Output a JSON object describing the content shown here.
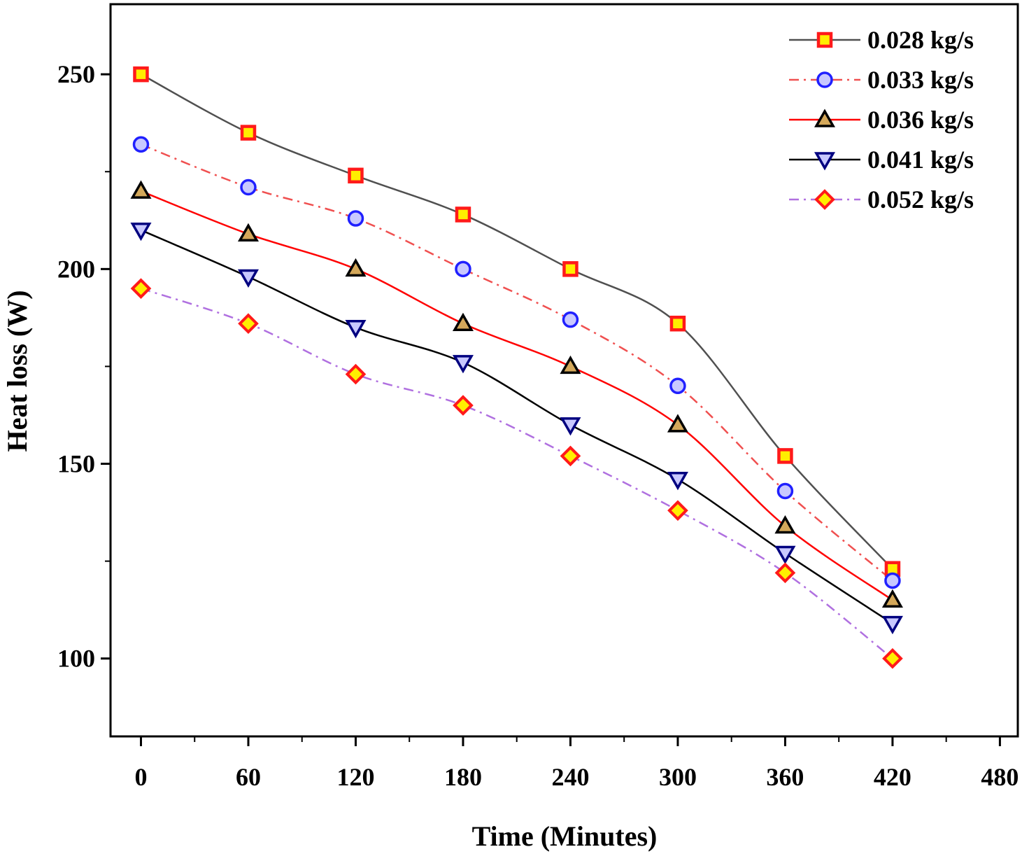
{
  "chart_data": {
    "type": "line",
    "xlabel": "Time (Minutes)",
    "ylabel": "Heat loss (W)",
    "xlim": [
      -17,
      490
    ],
    "ylim": [
      80,
      268
    ],
    "xticks": [
      0,
      60,
      120,
      180,
      240,
      300,
      360,
      420,
      480
    ],
    "xtick_labels": [
      "0",
      "60",
      "120",
      "180",
      "240",
      "300",
      "360",
      "420",
      "480"
    ],
    "yticks": [
      100,
      150,
      200,
      250
    ],
    "ytick_labels": [
      "100",
      "150",
      "200",
      "250"
    ],
    "x": [
      0,
      60,
      120,
      180,
      240,
      300,
      360,
      420
    ],
    "legend_position": "top-right",
    "series": [
      {
        "name": "0.028 kg/s",
        "values": [
          250,
          235,
          224,
          214,
          200,
          186,
          152,
          123
        ],
        "line_color": "#505050",
        "line_style": "solid",
        "marker": "square",
        "marker_fill": "#ffee00",
        "marker_stroke": "#ff1a1a"
      },
      {
        "name": "0.033 kg/s",
        "values": [
          232,
          221,
          213,
          200,
          187,
          170,
          143,
          120
        ],
        "line_color": "#f05050",
        "line_style": "dashdot",
        "marker": "circle",
        "marker_fill": "#c8c8ff",
        "marker_stroke": "#2020ff"
      },
      {
        "name": "0.036 kg/s",
        "values": [
          220,
          209,
          200,
          186,
          175,
          160,
          134,
          115
        ],
        "line_color": "#ff0000",
        "line_style": "solid",
        "marker": "triangle-up",
        "marker_fill": "#d4a85a",
        "marker_stroke": "#000000"
      },
      {
        "name": "0.041 kg/s",
        "values": [
          210,
          198,
          185,
          176,
          160,
          146,
          127,
          109
        ],
        "line_color": "#000000",
        "line_style": "solid",
        "marker": "triangle-down",
        "marker_fill": "#c8c8ff",
        "marker_stroke": "#000080"
      },
      {
        "name": "0.052 kg/s",
        "values": [
          195,
          186,
          173,
          165,
          152,
          138,
          122,
          100
        ],
        "line_color": "#b070e0",
        "line_style": "dashdot",
        "marker": "diamond",
        "marker_fill": "#ffee00",
        "marker_stroke": "#ff1a1a"
      }
    ]
  }
}
